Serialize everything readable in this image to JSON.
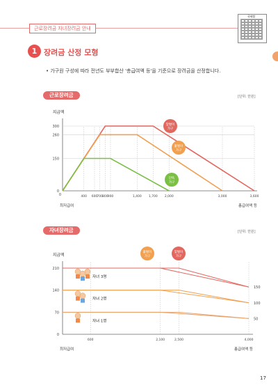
{
  "header": {
    "tag": "근로장려금 자녀장려금 안내",
    "qr_label": "국세청"
  },
  "section": {
    "number": "1",
    "title": "장려금 산정 모형",
    "bullet": "• 가구원 구성에 따라 전년도 부부합산 '총급여액 등'을 기준으로 장려금을 산정합니다."
  },
  "chart1": {
    "chip": "근로장려금",
    "unit": "[단위: 만원]",
    "ylabel": "지급액",
    "xlabel": "총급여액 등",
    "origin_label": "최저급여",
    "y_ticks": [
      "0",
      "150",
      "260",
      "300"
    ],
    "x_ticks": [
      "400",
      "600",
      "700",
      "800",
      "900",
      "1,400",
      "1,700",
      "2,000",
      "3,000",
      "3,600"
    ],
    "callouts": [
      {
        "text": "맞벌이 가구",
        "color": "#e2675f"
      },
      {
        "text": "홑벌이 가구",
        "color": "#f0a050"
      },
      {
        "text": "단독 가구",
        "color": "#7cbf45"
      }
    ]
  },
  "chart2": {
    "chip": "자녀장려금",
    "unit": "[단위: 만원]",
    "ylabel": "지급액",
    "xlabel": "총급여액 등",
    "origin_label": "최저급여",
    "y_ticks": [
      "0",
      "70",
      "140",
      "210"
    ],
    "x_ticks": [
      "600",
      "2,100",
      "2,500",
      "4,000"
    ],
    "end_labels": [
      "150",
      "100",
      "50"
    ],
    "children": [
      "자녀 3명",
      "자녀 2명",
      "자녀 1명"
    ],
    "callouts": [
      {
        "text": "홑벌이 가구",
        "color": "#f0a050"
      },
      {
        "text": "맞벌이 가구",
        "color": "#e2675f"
      }
    ]
  },
  "chart_data": [
    {
      "type": "line",
      "title": "근로장려금",
      "xlabel": "총급여액 등",
      "ylabel": "지급액",
      "ylim": [
        0,
        300
      ],
      "xlim": [
        0,
        3600
      ],
      "series": [
        {
          "name": "맞벌이 가구",
          "x": [
            0,
            800,
            1700,
            3600
          ],
          "y": [
            0,
            300,
            300,
            0
          ],
          "color": "#e2675f"
        },
        {
          "name": "홑벌이 가구",
          "x": [
            0,
            700,
            1400,
            3000
          ],
          "y": [
            0,
            260,
            260,
            0
          ],
          "color": "#f0a050"
        },
        {
          "name": "단독 가구",
          "x": [
            0,
            400,
            900,
            2000
          ],
          "y": [
            0,
            150,
            150,
            0
          ],
          "color": "#7cbf45"
        }
      ],
      "grid": true
    },
    {
      "type": "line",
      "title": "자녀장려금",
      "xlabel": "총급여액 등",
      "ylabel": "지급액",
      "ylim": [
        0,
        210
      ],
      "xlim": [
        0,
        4000
      ],
      "series": [
        {
          "name": "자녀 3명 (홑벌이 가구)",
          "x": [
            0,
            2100,
            4000
          ],
          "y": [
            210,
            210,
            150
          ],
          "color": "#e2675f"
        },
        {
          "name": "자녀 3명 (맞벌이 가구)",
          "x": [
            0,
            2500,
            4000
          ],
          "y": [
            210,
            210,
            150
          ],
          "color": "#e2675f"
        },
        {
          "name": "자녀 2명 (홑벌이 가구)",
          "x": [
            0,
            2100,
            4000
          ],
          "y": [
            140,
            140,
            100
          ],
          "color": "#f0a050"
        },
        {
          "name": "자녀 2명 (맞벌이 가구)",
          "x": [
            0,
            2500,
            4000
          ],
          "y": [
            140,
            140,
            100
          ],
          "color": "#f0a050"
        },
        {
          "name": "자녀 1명 (홑벌이 가구)",
          "x": [
            0,
            2100,
            4000
          ],
          "y": [
            70,
            70,
            50
          ],
          "color": "#e8a26a"
        },
        {
          "name": "자녀 1명 (맞벌이 가구)",
          "x": [
            0,
            2500,
            4000
          ],
          "y": [
            70,
            70,
            50
          ],
          "color": "#e8a26a"
        }
      ],
      "grid": true
    }
  ],
  "footer": {
    "page": "17"
  }
}
